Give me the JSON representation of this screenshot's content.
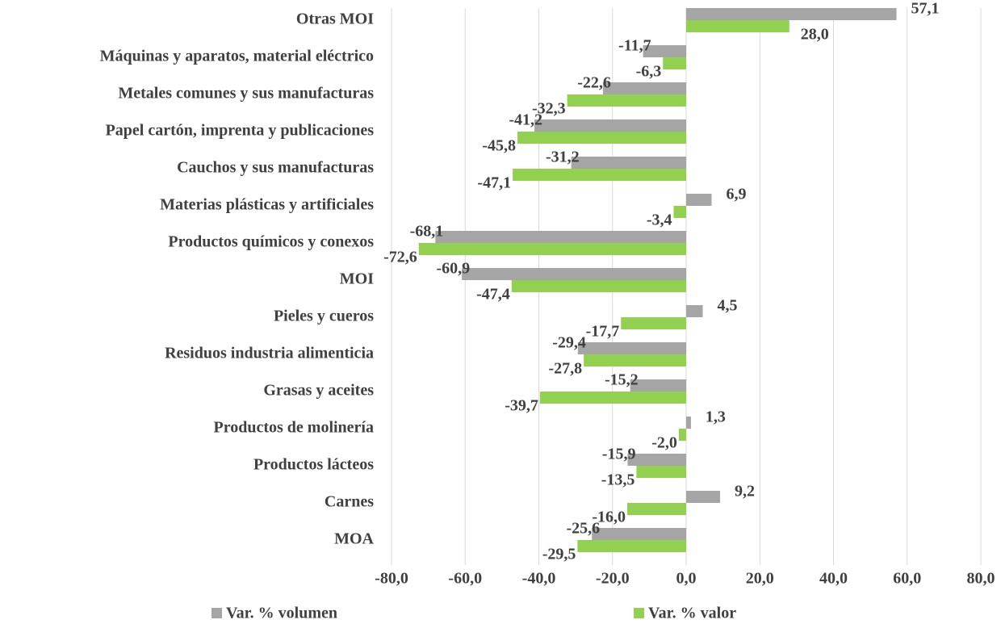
{
  "chart_data": {
    "type": "barh",
    "categories": [
      "Otras MOI",
      "Máquinas y aparatos, material eléctrico",
      "Metales comunes y sus manufacturas",
      "Papel cartón, imprenta y publicaciones",
      "Cauchos y sus manufacturas",
      "Materias plásticas y artificiales",
      "Productos químicos y conexos",
      "MOI",
      "Pieles y cueros",
      "Residuos industria alimenticia",
      "Grasas y aceites",
      "Productos de molinería",
      "Productos lácteos",
      "Carnes",
      "MOA"
    ],
    "series": [
      {
        "name": "Var. % volumen",
        "color": "#a5a5a5",
        "values": [
          57.1,
          -11.7,
          -22.6,
          -41.2,
          -31.2,
          6.9,
          -68.1,
          -60.9,
          4.5,
          -29.4,
          -15.2,
          1.3,
          -15.9,
          9.2,
          -25.6
        ],
        "value_labels": [
          "57,1",
          "-11,7",
          "-22,6",
          "-41,2",
          "-31,2",
          "6,9",
          "-68,1",
          "-60,9",
          "4,5",
          "-29,4",
          "-15,2",
          "1,3",
          "-15,9",
          "9,2",
          "-25,6"
        ]
      },
      {
        "name": "Var. % valor",
        "color": "#92d050",
        "values": [
          28.0,
          -6.3,
          -32.3,
          -45.8,
          -47.1,
          -3.4,
          -72.6,
          -47.4,
          -17.7,
          -27.8,
          -39.7,
          -2.0,
          -13.5,
          -16.0,
          -29.5
        ],
        "value_labels": [
          "28,0",
          "-6,3",
          "-32,3",
          "-45,8",
          "-47,1",
          "-3,4",
          "-72,6",
          "-47,4",
          "-17,7",
          "-27,8",
          "-39,7",
          "-2,0",
          "-13,5",
          "-16,0",
          "-29,5"
        ]
      }
    ],
    "xlim": [
      -80,
      80
    ],
    "xticks": [
      {
        "value": -80,
        "label": "-80,0"
      },
      {
        "value": -60,
        "label": "-60,0"
      },
      {
        "value": -40,
        "label": "-40,0"
      },
      {
        "value": -20,
        "label": "-20,0"
      },
      {
        "value": 0,
        "label": "0,0"
      },
      {
        "value": 20,
        "label": "20,0"
      },
      {
        "value": 40,
        "label": "40,0"
      },
      {
        "value": 60,
        "label": "60,0"
      },
      {
        "value": 80,
        "label": "80,0"
      }
    ],
    "grid": true,
    "legend": "bottom"
  }
}
